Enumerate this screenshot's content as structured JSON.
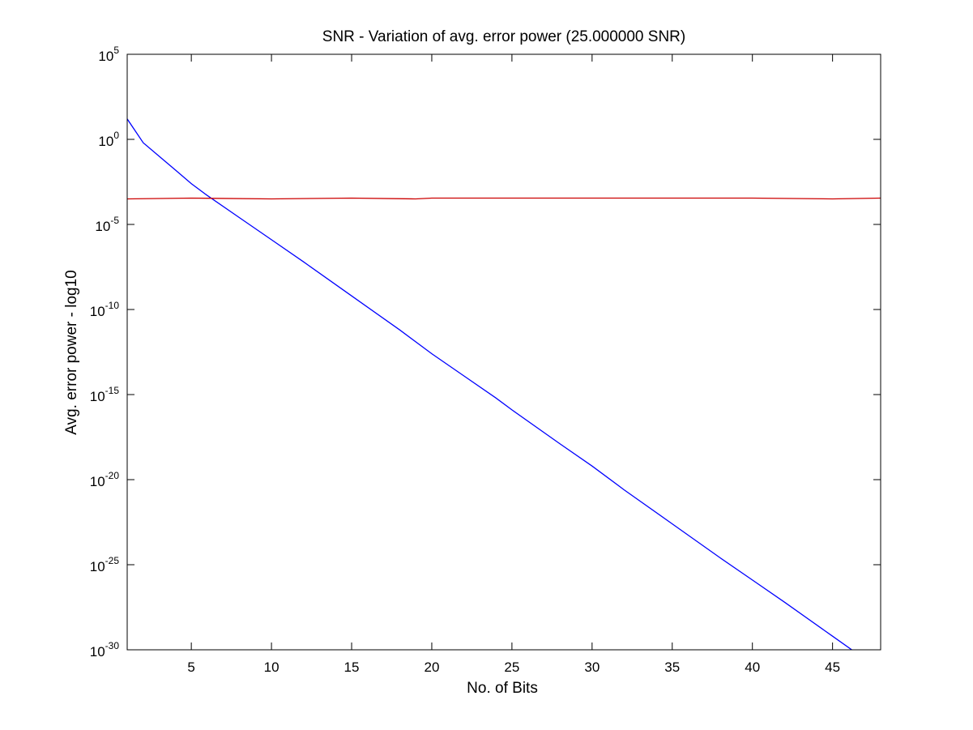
{
  "chart_data": {
    "type": "line",
    "title": "SNR - Variation of avg. error power (25.000000 SNR)",
    "xlabel": "No. of Bits",
    "ylabel": "Avg. error power - log10",
    "xlim": [
      1,
      48
    ],
    "ylim_exponent": [
      -30,
      5
    ],
    "yscale": "log",
    "grid": false,
    "x_ticks": [
      5,
      10,
      15,
      20,
      25,
      30,
      35,
      40,
      45
    ],
    "y_ticks": [
      {
        "base": "10",
        "exp": "5",
        "value": 5
      },
      {
        "base": "10",
        "exp": "0",
        "value": 0
      },
      {
        "base": "10",
        "exp": "-5",
        "value": -5
      },
      {
        "base": "10",
        "exp": "-10",
        "value": -10
      },
      {
        "base": "10",
        "exp": "-15",
        "value": -15
      },
      {
        "base": "10",
        "exp": "-20",
        "value": -20
      },
      {
        "base": "10",
        "exp": "-25",
        "value": -25
      },
      {
        "base": "10",
        "exp": "-30",
        "value": -30
      }
    ],
    "series": [
      {
        "color": "#0000ff",
        "x": [
          1,
          2,
          3,
          4,
          5,
          6,
          8,
          10,
          12,
          15,
          18,
          20,
          22,
          24,
          25,
          28,
          30,
          32,
          35,
          38,
          40,
          42,
          45,
          48
        ],
        "log10_y": [
          1.2,
          -0.2,
          -1.0,
          -1.8,
          -2.6,
          -3.3,
          -4.6,
          -5.9,
          -7.2,
          -9.2,
          -11.2,
          -12.6,
          -13.9,
          -15.2,
          -15.9,
          -17.9,
          -19.2,
          -20.6,
          -22.6,
          -24.6,
          -25.9,
          -27.2,
          -29.2,
          -31.2
        ],
        "y_text": [
          "10^1.2",
          "10^-0.2",
          "10^-1.0",
          "10^-1.8",
          "10^-2.6",
          "10^-3.3",
          "10^-4.6",
          "10^-5.9",
          "10^-7.2",
          "10^-9.2",
          "10^-11.2",
          "10^-12.6",
          "10^-13.9",
          "10^-15.2",
          "10^-15.9",
          "10^-17.9",
          "10^-19.2",
          "10^-20.6",
          "10^-22.6",
          "10^-24.6",
          "10^-25.9",
          "10^-27.2",
          "10^-29.2",
          "10^-31.2"
        ]
      },
      {
        "color": "#cc0000",
        "x": [
          1,
          5,
          10,
          15,
          19,
          20,
          25,
          30,
          35,
          40,
          45,
          48
        ],
        "log10_y": [
          -3.5,
          -3.45,
          -3.5,
          -3.45,
          -3.5,
          -3.45,
          -3.45,
          -3.45,
          -3.45,
          -3.45,
          -3.5,
          -3.45
        ],
        "y_text": [
          "10^-3.5",
          "10^-3.45",
          "10^-3.5",
          "10^-3.45",
          "10^-3.5",
          "10^-3.45",
          "10^-3.45",
          "10^-3.45",
          "10^-3.45",
          "10^-3.45",
          "10^-3.5",
          "10^-3.45"
        ]
      }
    ]
  }
}
